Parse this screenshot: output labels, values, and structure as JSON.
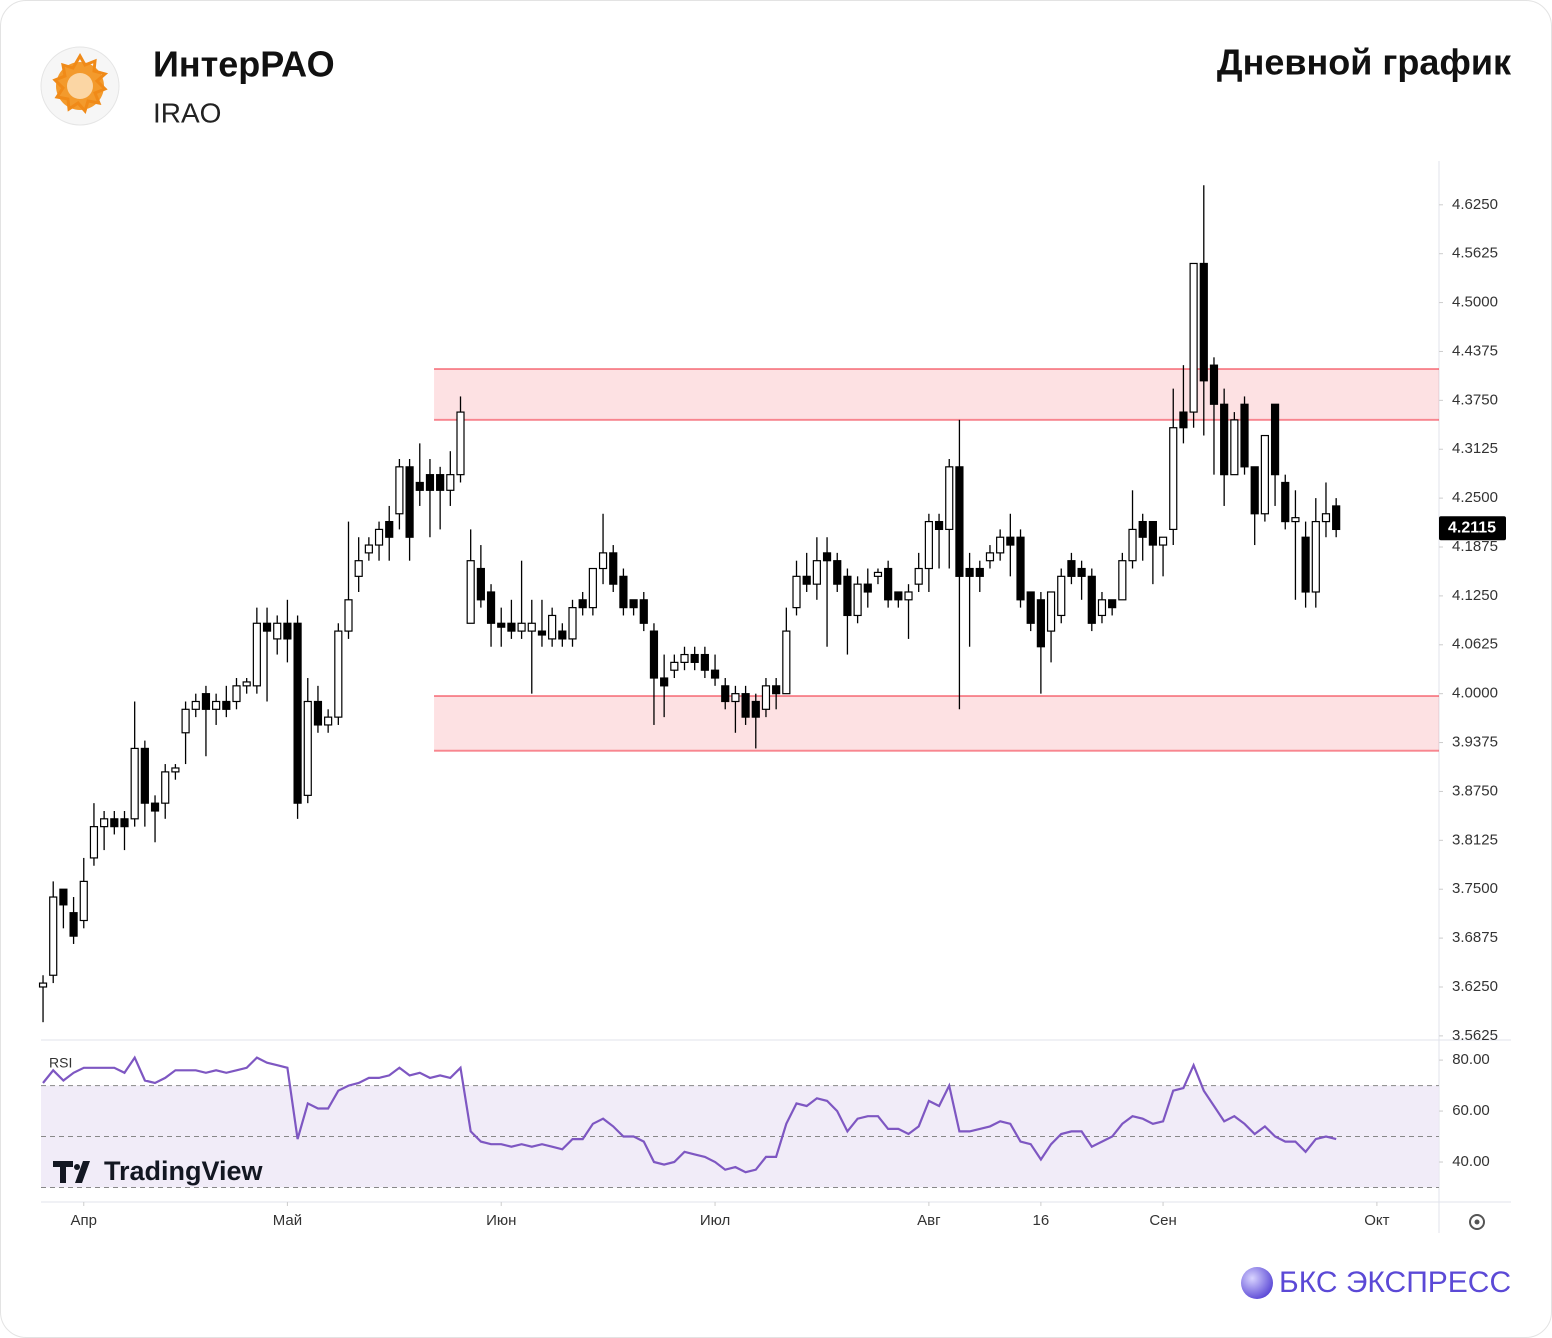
{
  "header": {
    "name": "ИнтерРАО",
    "ticker": "IRAO",
    "subtitle": "Дневной график"
  },
  "branding": {
    "watermark": "TradingView",
    "source": "БКС ЭКСПРЕСС"
  },
  "chart_data": [
    {
      "type": "candlestick",
      "up_color": "#ffffff",
      "down_color": "#000000",
      "xlim": [
        -0.2,
        137.1
      ],
      "ylim": [
        3.5585,
        4.681
      ],
      "yticks": [
        {
          "value": 3.5625,
          "label": "3.5625"
        },
        {
          "value": 3.625,
          "label": "3.6250"
        },
        {
          "value": 3.6875,
          "label": "3.6875"
        },
        {
          "value": 3.75,
          "label": "3.7500"
        },
        {
          "value": 3.8125,
          "label": "3.8125"
        },
        {
          "value": 3.875,
          "label": "3.8750"
        },
        {
          "value": 3.9375,
          "label": "3.9375"
        },
        {
          "value": 4.0,
          "label": "4.0000"
        },
        {
          "value": 4.0625,
          "label": "4.0625"
        },
        {
          "value": 4.125,
          "label": "4.1250"
        },
        {
          "value": 4.1875,
          "label": "4.1875"
        },
        {
          "value": 4.25,
          "label": "4.2500"
        },
        {
          "value": 4.3125,
          "label": "4.3125"
        },
        {
          "value": 4.375,
          "label": "4.3750"
        },
        {
          "value": 4.4375,
          "label": "4.4375"
        },
        {
          "value": 4.5,
          "label": "4.5000"
        },
        {
          "value": 4.5625,
          "label": "4.5625"
        },
        {
          "value": 4.625,
          "label": "4.6250"
        }
      ],
      "last_price": 4.2115,
      "zones": [
        {
          "from_x": 38.4,
          "low": 4.35,
          "high": 4.415
        },
        {
          "from_x": 38.4,
          "low": 3.927,
          "high": 3.997
        }
      ],
      "zone_color": "#f23645",
      "ohlc": [
        [
          3.625,
          3.64,
          3.58,
          3.63
        ],
        [
          3.64,
          3.76,
          3.63,
          3.74
        ],
        [
          3.75,
          3.75,
          3.7,
          3.73
        ],
        [
          3.72,
          3.74,
          3.68,
          3.69
        ],
        [
          3.71,
          3.79,
          3.7,
          3.76
        ],
        [
          3.79,
          3.86,
          3.78,
          3.83
        ],
        [
          3.83,
          3.85,
          3.8,
          3.84
        ],
        [
          3.84,
          3.85,
          3.82,
          3.83
        ],
        [
          3.84,
          3.85,
          3.8,
          3.83
        ],
        [
          3.84,
          3.99,
          3.83,
          3.93
        ],
        [
          3.93,
          3.94,
          3.83,
          3.86
        ],
        [
          3.86,
          3.87,
          3.81,
          3.85
        ],
        [
          3.86,
          3.91,
          3.84,
          3.9
        ],
        [
          3.9,
          3.91,
          3.89,
          3.905
        ],
        [
          3.95,
          3.99,
          3.91,
          3.98
        ],
        [
          3.98,
          4.0,
          3.97,
          3.99
        ],
        [
          4.0,
          4.01,
          3.92,
          3.98
        ],
        [
          3.98,
          4.0,
          3.96,
          3.99
        ],
        [
          3.99,
          4.01,
          3.97,
          3.98
        ],
        [
          3.99,
          4.02,
          3.98,
          4.01
        ],
        [
          4.01,
          4.02,
          4.0,
          4.015
        ],
        [
          4.01,
          4.11,
          4.0,
          4.09
        ],
        [
          4.09,
          4.11,
          3.99,
          4.08
        ],
        [
          4.07,
          4.1,
          4.05,
          4.09
        ],
        [
          4.09,
          4.12,
          4.04,
          4.07
        ],
        [
          4.09,
          4.1,
          3.84,
          3.86
        ],
        [
          3.87,
          4.02,
          3.86,
          3.99
        ],
        [
          3.99,
          4.01,
          3.95,
          3.96
        ],
        [
          3.96,
          3.98,
          3.95,
          3.97
        ],
        [
          3.97,
          4.09,
          3.96,
          4.08
        ],
        [
          4.08,
          4.22,
          4.07,
          4.12
        ],
        [
          4.15,
          4.2,
          4.13,
          4.17
        ],
        [
          4.18,
          4.2,
          4.17,
          4.19
        ],
        [
          4.19,
          4.22,
          4.17,
          4.21
        ],
        [
          4.22,
          4.24,
          4.17,
          4.2
        ],
        [
          4.23,
          4.3,
          4.21,
          4.29
        ],
        [
          4.29,
          4.3,
          4.17,
          4.2
        ],
        [
          4.27,
          4.32,
          4.24,
          4.26
        ],
        [
          4.28,
          4.3,
          4.2,
          4.26
        ],
        [
          4.28,
          4.29,
          4.21,
          4.26
        ],
        [
          4.26,
          4.31,
          4.24,
          4.28
        ],
        [
          4.28,
          4.38,
          4.27,
          4.36
        ],
        [
          4.09,
          4.21,
          4.09,
          4.17
        ],
        [
          4.16,
          4.19,
          4.11,
          4.12
        ],
        [
          4.13,
          4.14,
          4.06,
          4.09
        ],
        [
          4.09,
          4.11,
          4.06,
          4.085
        ],
        [
          4.09,
          4.12,
          4.07,
          4.08
        ],
        [
          4.08,
          4.17,
          4.07,
          4.09
        ],
        [
          4.08,
          4.12,
          4.0,
          4.09
        ],
        [
          4.08,
          4.12,
          4.06,
          4.075
        ],
        [
          4.07,
          4.11,
          4.06,
          4.1
        ],
        [
          4.08,
          4.09,
          4.06,
          4.07
        ],
        [
          4.07,
          4.12,
          4.06,
          4.11
        ],
        [
          4.12,
          4.13,
          4.1,
          4.11
        ],
        [
          4.11,
          4.16,
          4.1,
          4.16
        ],
        [
          4.16,
          4.23,
          4.14,
          4.18
        ],
        [
          4.18,
          4.19,
          4.13,
          4.14
        ],
        [
          4.15,
          4.16,
          4.1,
          4.11
        ],
        [
          4.12,
          4.12,
          4.1,
          4.11
        ],
        [
          4.12,
          4.13,
          4.08,
          4.09
        ],
        [
          4.08,
          4.09,
          3.96,
          4.02
        ],
        [
          4.02,
          4.05,
          3.97,
          4.01
        ],
        [
          4.03,
          4.05,
          4.02,
          4.04
        ],
        [
          4.04,
          4.06,
          4.03,
          4.05
        ],
        [
          4.05,
          4.06,
          4.03,
          4.04
        ],
        [
          4.05,
          4.06,
          4.02,
          4.03
        ],
        [
          4.03,
          4.05,
          4.01,
          4.02
        ],
        [
          4.01,
          4.02,
          3.98,
          3.99
        ],
        [
          3.99,
          4.01,
          3.95,
          4.0
        ],
        [
          4.0,
          4.01,
          3.96,
          3.97
        ],
        [
          3.99,
          4.0,
          3.93,
          3.97
        ],
        [
          3.98,
          4.02,
          3.97,
          4.01
        ],
        [
          4.01,
          4.02,
          3.98,
          4.0
        ],
        [
          4.0,
          4.11,
          4.0,
          4.08
        ],
        [
          4.11,
          4.17,
          4.1,
          4.15
        ],
        [
          4.15,
          4.18,
          4.13,
          4.14
        ],
        [
          4.14,
          4.2,
          4.12,
          4.17
        ],
        [
          4.18,
          4.2,
          4.06,
          4.17
        ],
        [
          4.17,
          4.18,
          4.13,
          4.14
        ],
        [
          4.15,
          4.16,
          4.05,
          4.1
        ],
        [
          4.1,
          4.15,
          4.09,
          4.14
        ],
        [
          4.14,
          4.16,
          4.11,
          4.13
        ],
        [
          4.15,
          4.16,
          4.14,
          4.155
        ],
        [
          4.16,
          4.17,
          4.11,
          4.12
        ],
        [
          4.13,
          4.13,
          4.11,
          4.12
        ],
        [
          4.12,
          4.14,
          4.07,
          4.13
        ],
        [
          4.14,
          4.18,
          4.13,
          4.16
        ],
        [
          4.16,
          4.23,
          4.13,
          4.22
        ],
        [
          4.22,
          4.23,
          4.16,
          4.21
        ],
        [
          4.21,
          4.3,
          4.16,
          4.29
        ],
        [
          4.29,
          4.35,
          3.98,
          4.15
        ],
        [
          4.16,
          4.18,
          4.06,
          4.15
        ],
        [
          4.16,
          4.17,
          4.13,
          4.15
        ],
        [
          4.17,
          4.19,
          4.16,
          4.18
        ],
        [
          4.18,
          4.21,
          4.17,
          4.2
        ],
        [
          4.2,
          4.23,
          4.15,
          4.19
        ],
        [
          4.2,
          4.21,
          4.11,
          4.12
        ],
        [
          4.13,
          4.13,
          4.08,
          4.09
        ],
        [
          4.12,
          4.13,
          4.0,
          4.06
        ],
        [
          4.08,
          4.13,
          4.04,
          4.13
        ],
        [
          4.1,
          4.16,
          4.09,
          4.15
        ],
        [
          4.17,
          4.18,
          4.14,
          4.15
        ],
        [
          4.16,
          4.17,
          4.12,
          4.15
        ],
        [
          4.15,
          4.16,
          4.08,
          4.09
        ],
        [
          4.1,
          4.13,
          4.09,
          4.12
        ],
        [
          4.12,
          4.12,
          4.1,
          4.11
        ],
        [
          4.12,
          4.18,
          4.12,
          4.17
        ],
        [
          4.17,
          4.26,
          4.16,
          4.21
        ],
        [
          4.22,
          4.23,
          4.17,
          4.2
        ],
        [
          4.22,
          4.22,
          4.14,
          4.19
        ],
        [
          4.19,
          4.2,
          4.15,
          4.2
        ],
        [
          4.21,
          4.39,
          4.19,
          4.34
        ],
        [
          4.36,
          4.42,
          4.32,
          4.34
        ],
        [
          4.36,
          4.55,
          4.34,
          4.55
        ],
        [
          4.55,
          4.65,
          4.33,
          4.4
        ],
        [
          4.42,
          4.43,
          4.28,
          4.37
        ],
        [
          4.37,
          4.39,
          4.24,
          4.28
        ],
        [
          4.28,
          4.36,
          4.28,
          4.35
        ],
        [
          4.37,
          4.38,
          4.28,
          4.29
        ],
        [
          4.29,
          4.29,
          4.19,
          4.23
        ],
        [
          4.23,
          4.33,
          4.22,
          4.33
        ],
        [
          4.37,
          4.37,
          4.24,
          4.28
        ],
        [
          4.27,
          4.28,
          4.21,
          4.22
        ],
        [
          4.22,
          4.26,
          4.12,
          4.225
        ],
        [
          4.2,
          4.22,
          4.11,
          4.13
        ],
        [
          4.13,
          4.25,
          4.11,
          4.22
        ],
        [
          4.22,
          4.27,
          4.2,
          4.23
        ],
        [
          4.24,
          4.25,
          4.2,
          4.21
        ]
      ]
    },
    {
      "type": "line",
      "title": "RSI",
      "color": "#7e57c2",
      "xlim": [
        -0.2,
        137.1
      ],
      "ylim": [
        24.7,
        87.5
      ],
      "yticks": [
        {
          "value": 40,
          "label": "40.00"
        },
        {
          "value": 60,
          "label": "60.00"
        },
        {
          "value": 80,
          "label": "80.00"
        }
      ],
      "levels": [
        30,
        50,
        70
      ],
      "band_color": "#ede7f6",
      "xticks": [
        {
          "value": 4,
          "label": "Апр"
        },
        {
          "value": 24,
          "label": "Май"
        },
        {
          "value": 45,
          "label": "Июн"
        },
        {
          "value": 66,
          "label": "Июл"
        },
        {
          "value": 87,
          "label": "Авг"
        },
        {
          "value": 98,
          "label": "16"
        },
        {
          "value": 110,
          "label": "Сен"
        },
        {
          "value": 131,
          "label": "Окт"
        }
      ],
      "values": [
        71,
        76,
        72,
        75,
        77,
        77,
        77,
        77,
        75,
        81,
        72,
        71,
        73,
        76,
        76,
        76,
        75,
        76,
        75,
        76,
        77,
        81,
        79,
        78,
        77,
        49,
        63,
        61,
        61,
        68,
        70,
        71,
        73,
        73,
        74,
        77,
        74,
        75,
        73,
        74,
        73,
        77,
        52,
        48,
        47,
        47,
        46,
        47,
        46,
        47,
        46,
        45,
        49,
        49,
        55,
        57,
        54,
        50,
        50,
        48,
        40,
        39,
        40,
        44,
        43,
        42,
        40,
        37,
        38,
        36,
        37,
        42,
        42,
        55,
        63,
        62,
        65,
        64,
        60,
        52,
        57,
        58,
        58,
        53,
        53,
        51,
        54,
        64,
        62,
        70,
        52,
        52,
        53,
        54,
        56,
        55,
        48,
        47,
        41,
        47,
        51,
        52,
        52,
        46,
        48,
        50,
        55,
        58,
        57,
        55,
        56,
        68,
        69,
        78,
        68,
        62,
        56,
        58,
        55,
        51,
        54,
        50,
        48,
        48,
        44,
        49,
        50,
        49
      ]
    }
  ]
}
